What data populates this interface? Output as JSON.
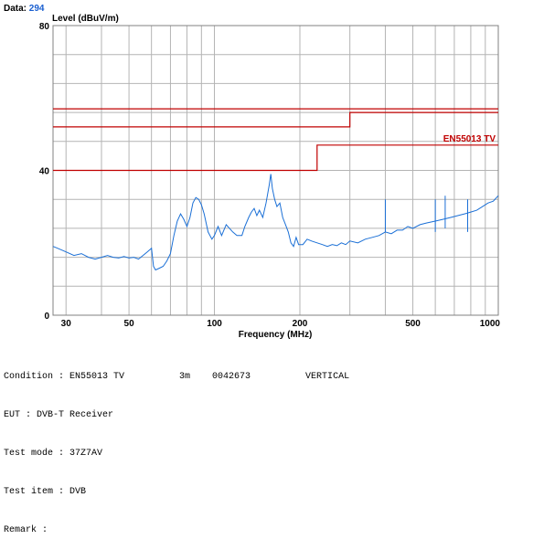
{
  "header": {
    "data_label": "Data:",
    "data_value": "294"
  },
  "chart_data": {
    "type": "line",
    "ylabel": "Level (dBuV/m)",
    "xlabel": "Frequency (MHz)",
    "xscale": "log",
    "xlim": [
      27,
      1000
    ],
    "ylim": [
      0,
      80
    ],
    "x_ticks": [
      30,
      50,
      100,
      200,
      500,
      1000
    ],
    "y_ticks": [
      0,
      40,
      80
    ],
    "grid": true,
    "limit_lines": [
      {
        "name": "EN55013 TV",
        "color": "#c00000",
        "points": [
          [
            27,
            40
          ],
          [
            230,
            40
          ],
          [
            230,
            47
          ],
          [
            1000,
            47
          ]
        ]
      },
      {
        "name": "",
        "color": "#c00000",
        "points": [
          [
            27,
            52
          ],
          [
            300,
            52
          ],
          [
            300,
            56
          ],
          [
            1000,
            56
          ]
        ]
      },
      {
        "name": "",
        "color": "#c00000",
        "points": [
          [
            27,
            57
          ],
          [
            1000,
            57
          ]
        ]
      }
    ],
    "series": [
      {
        "color": "#1a6fd6",
        "points": [
          [
            27,
            19
          ],
          [
            28,
            18.5
          ],
          [
            30,
            17.5
          ],
          [
            32,
            16.5
          ],
          [
            34,
            17
          ],
          [
            36,
            16
          ],
          [
            38,
            15.5
          ],
          [
            40,
            16
          ],
          [
            42,
            16.5
          ],
          [
            44,
            16
          ],
          [
            46,
            15.8
          ],
          [
            48,
            16.2
          ],
          [
            50,
            15.8
          ],
          [
            52,
            16
          ],
          [
            54,
            15.5
          ],
          [
            56,
            16.5
          ],
          [
            58,
            17.5
          ],
          [
            60,
            18.5
          ],
          [
            61,
            13.5
          ],
          [
            62,
            12.5
          ],
          [
            64,
            13
          ],
          [
            66,
            13.5
          ],
          [
            68,
            15
          ],
          [
            70,
            17
          ],
          [
            72,
            22
          ],
          [
            74,
            26
          ],
          [
            76,
            28
          ],
          [
            78,
            26.5
          ],
          [
            80,
            24.5
          ],
          [
            82,
            27
          ],
          [
            84,
            31
          ],
          [
            86,
            32.5
          ],
          [
            88,
            32
          ],
          [
            90,
            30.5
          ],
          [
            92,
            28
          ],
          [
            95,
            23
          ],
          [
            98,
            21
          ],
          [
            100,
            22
          ],
          [
            103,
            24.5
          ],
          [
            106,
            22
          ],
          [
            110,
            25
          ],
          [
            113,
            24
          ],
          [
            116,
            23
          ],
          [
            120,
            22
          ],
          [
            125,
            22
          ],
          [
            128,
            24.5
          ],
          [
            132,
            27
          ],
          [
            135,
            28.5
          ],
          [
            138,
            29.5
          ],
          [
            141,
            27.5
          ],
          [
            144,
            29
          ],
          [
            148,
            27
          ],
          [
            152,
            31
          ],
          [
            156,
            36
          ],
          [
            158,
            39
          ],
          [
            160,
            35
          ],
          [
            163,
            32
          ],
          [
            166,
            30
          ],
          [
            170,
            31
          ],
          [
            174,
            27
          ],
          [
            178,
            25
          ],
          [
            182,
            23
          ],
          [
            186,
            20
          ],
          [
            190,
            19
          ],
          [
            194,
            21.5
          ],
          [
            198,
            19.5
          ],
          [
            205,
            19.5
          ],
          [
            212,
            21
          ],
          [
            220,
            20.5
          ],
          [
            230,
            20
          ],
          [
            240,
            19.5
          ],
          [
            250,
            19
          ],
          [
            260,
            19.5
          ],
          [
            270,
            19.2
          ],
          [
            280,
            20
          ],
          [
            290,
            19.5
          ],
          [
            300,
            20.5
          ],
          [
            320,
            20
          ],
          [
            340,
            21
          ],
          [
            360,
            21.5
          ],
          [
            380,
            22
          ],
          [
            400,
            23
          ],
          [
            420,
            22.5
          ],
          [
            440,
            23.5
          ],
          [
            460,
            23.5
          ],
          [
            480,
            24.5
          ],
          [
            500,
            24
          ],
          [
            530,
            25
          ],
          [
            560,
            25.5
          ],
          [
            600,
            26
          ],
          [
            640,
            26.5
          ],
          [
            680,
            27
          ],
          [
            720,
            27.5
          ],
          [
            760,
            28
          ],
          [
            800,
            28.5
          ],
          [
            840,
            29
          ],
          [
            880,
            30
          ],
          [
            920,
            31
          ],
          [
            960,
            31.5
          ],
          [
            1000,
            33
          ]
        ]
      }
    ],
    "spikes": [
      {
        "x": 400,
        "y": 32
      },
      {
        "x": 600,
        "y": 32
      },
      {
        "x": 650,
        "y": 33
      },
      {
        "x": 780,
        "y": 32
      }
    ]
  },
  "info": [
    {
      "label": "Condition",
      "value": "EN55013 TV          3m    0042673          VERTICAL"
    },
    {
      "label": "EUT",
      "value": "DVB-T Receiver"
    },
    {
      "label": "Test mode",
      "value": "37Z7AV"
    },
    {
      "label": "Test item",
      "value": "DVB"
    },
    {
      "label": "Remark",
      "value": ""
    }
  ]
}
